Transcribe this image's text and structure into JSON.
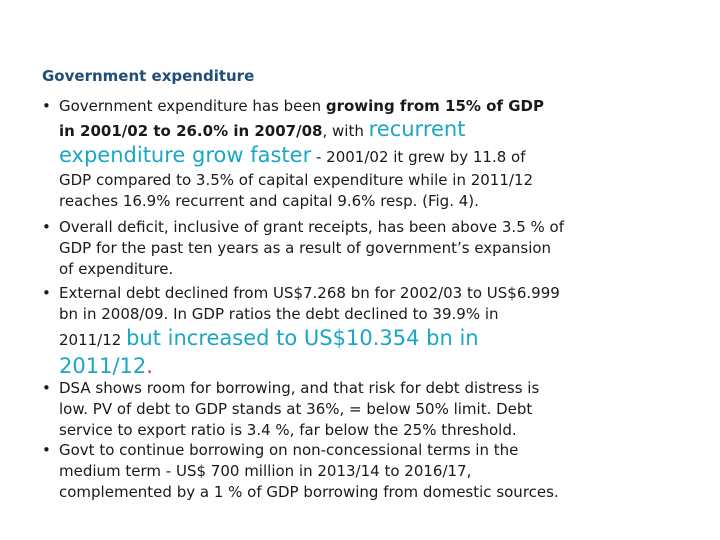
{
  "heading": "Government expenditure",
  "bullet_char": "•",
  "b1": {
    "l1_a": "Government expenditure has been ",
    "l1_b": "growing from 15% of GDP",
    "l2_a": "in 2001/02 to 26.0% in 2007/08",
    "l2_b": ", with ",
    "l2_c": "recurrent",
    "l3_a": "expenditure grow faster",
    "l3_b": " - 2001/02 it grew by 11.8 of",
    "l4": "GDP compared to 3.5% of capital expenditure while in 2011/12",
    "l5": "reaches 16.9% recurrent and capital 9.6% resp. (Fig. 4)."
  },
  "b2": {
    "l1": "Overall deficit, inclusive of grant receipts, has been above 3.5 % of",
    "l2": "GDP for the past ten years as a result of government’s expansion",
    "l3": "of expenditure."
  },
  "b3": {
    "l1": "External debt declined from US$7.268 bn for 2002/03 to US$6.999",
    "l2": "bn in 2008/09. In GDP ratios the debt declined to 39.9% in",
    "l3_a": "2011/12 ",
    "l3_b": "but increased to US$10.354 bn in",
    "l4_a": "2011/12",
    "l4_b": "."
  },
  "b4": {
    "l1": "DSA shows room for borrowing, and that risk for debt distress is",
    "l2": "low. PV of  debt to GDP stands at 36%, = below 50% limit. Debt",
    "l3": "service to export ratio is 3.4 %, far below the 25% threshold."
  },
  "b5": {
    "l1": "Govt to continue borrowing on non-concessional terms in the",
    "l2": "medium term - US$ 700 million in 2013/14 to 2016/17,",
    "l3": "complemented by a 1 % of GDP borrowing from domestic sources."
  },
  "colors": {
    "heading": "#1f4e79",
    "accent": "#1aa6c7",
    "text": "#1a1a1a"
  }
}
